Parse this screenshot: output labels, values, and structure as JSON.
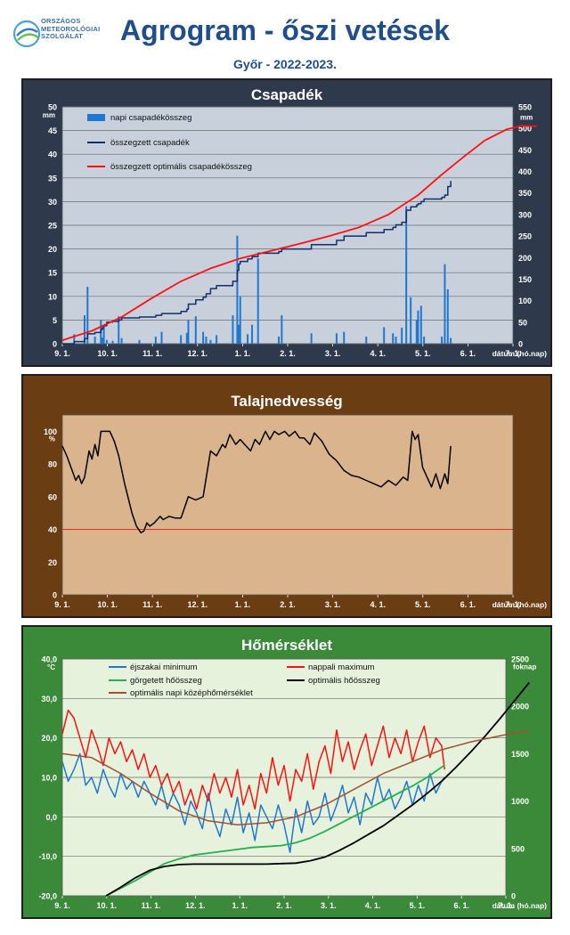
{
  "header": {
    "logo_lines": [
      "ORSZÁGOS",
      "METEOROLÓGIAI",
      "SZOLGÁLAT"
    ],
    "title": "Agrogram - őszi vetések",
    "subtitle": "Győr - 2022-2023."
  },
  "chart_data": [
    {
      "type": "bar+line",
      "title": "Csapadék",
      "panel_color": "#2e3a4c",
      "plot_color": "#c8d0dc",
      "x_ticks": [
        "9. 1.",
        "10. 1.",
        "11. 1.",
        "12. 1.",
        "1. 1.",
        "2. 1.",
        "3. 1.",
        "4. 1.",
        "5. 1.",
        "6. 1.",
        "7. 1."
      ],
      "x_unit_label": "dátum (hó.nap)",
      "y_left": {
        "unit": "mm",
        "min": 0,
        "max": 50,
        "ticks": [
          0,
          5,
          10,
          15,
          20,
          25,
          30,
          35,
          40,
          45,
          50
        ]
      },
      "y_right": {
        "unit": "mm",
        "min": 0,
        "max": 550,
        "ticks": [
          0,
          50,
          100,
          150,
          200,
          250,
          300,
          350,
          400,
          450,
          500,
          550
        ]
      },
      "legend": [
        "napi csapadékösszeg",
        "összegzett csapadék",
        "összegzett optimális  csapadékösszeg"
      ],
      "series": [
        {
          "name": "napi csapadékösszeg",
          "kind": "bar",
          "axis": "left",
          "color": "#1f77d0",
          "x_day": [
            8,
            15,
            17,
            22,
            26,
            27,
            28,
            30,
            34,
            38,
            40,
            52,
            63,
            67,
            80,
            84,
            85,
            90,
            95,
            97,
            100,
            104,
            115,
            118,
            119,
            120,
            125,
            128,
            132,
            146,
            148,
            168,
            185,
            190,
            205,
            217,
            223,
            225,
            229,
            232,
            235,
            239,
            240,
            242,
            244,
            256,
            258,
            260,
            262
          ],
          "values": [
            2,
            6,
            12,
            1.5,
            5,
            1.3,
            3.5,
            0.8,
            0.6,
            5.8,
            1.2,
            0.8,
            1.5,
            2.5,
            1.8,
            2.3,
            5,
            5.8,
            2.5,
            1.5,
            0.8,
            1.8,
            6,
            22.8,
            4,
            10,
            2,
            4,
            18,
            1.5,
            6,
            2.2,
            2.2,
            2.5,
            1.5,
            3.5,
            2.2,
            1.5,
            3.4,
            29,
            9.8,
            5,
            7,
            8,
            1.5,
            1.5,
            16.8,
            11.5,
            1.2
          ]
        },
        {
          "name": "összegzett csapadék",
          "kind": "step",
          "axis": "right",
          "color": "#102f6b",
          "x_day": [
            0,
            8,
            15,
            17,
            22,
            26,
            27,
            28,
            30,
            34,
            38,
            40,
            52,
            63,
            67,
            80,
            84,
            85,
            90,
            95,
            97,
            100,
            104,
            115,
            118,
            119,
            120,
            125,
            128,
            132,
            146,
            148,
            168,
            185,
            190,
            205,
            217,
            223,
            225,
            229,
            232,
            235,
            239,
            240,
            242,
            244,
            256,
            258,
            260,
            262
          ],
          "values": [
            0,
            5,
            12,
            23,
            26,
            33,
            37,
            42,
            50,
            52,
            55,
            60,
            62,
            66,
            70,
            75,
            80,
            92,
            102,
            108,
            116,
            128,
            135,
            145,
            170,
            185,
            191,
            197,
            202,
            210,
            214,
            220,
            230,
            240,
            250,
            258,
            265,
            270,
            276,
            282,
            310,
            318,
            322,
            325,
            330,
            336,
            340,
            345,
            365,
            378
          ]
        },
        {
          "name": "összegzett optimális  csapadékösszeg",
          "kind": "line",
          "axis": "right",
          "color": "#ff1010",
          "x_day": [
            0,
            20,
            40,
            60,
            80,
            100,
            120,
            140,
            160,
            180,
            200,
            220,
            240,
            255,
            270,
            285,
            300,
            310,
            320
          ],
          "values": [
            8,
            30,
            62,
            105,
            145,
            175,
            198,
            215,
            232,
            250,
            270,
            300,
            345,
            390,
            432,
            472,
            498,
            506,
            505
          ]
        }
      ]
    },
    {
      "type": "line",
      "title": "Talajnedvesség",
      "panel_color": "#6b3d12",
      "plot_color": "#d9b48c",
      "x_ticks": [
        "9. 1.",
        "10. 1.",
        "11. 1.",
        "12. 1.",
        "1. 1.",
        "2. 1.",
        "3. 1.",
        "4. 1.",
        "5. 1.",
        "6. 1.",
        "7. 1."
      ],
      "x_unit_label": "dátum (hó.nap)",
      "y_left": {
        "unit": "%",
        "min": 0,
        "max": 110,
        "ticks": [
          0,
          20,
          40,
          60,
          80,
          100
        ]
      },
      "reference_line": {
        "value": 40,
        "color": "#ff2020"
      },
      "series": [
        {
          "name": "talajnedvesség",
          "color": "#000000",
          "x_day": [
            0,
            3,
            7,
            9,
            11,
            13,
            15,
            18,
            20,
            22,
            24,
            26,
            28,
            30,
            32,
            35,
            38,
            42,
            47,
            50,
            53,
            55,
            57,
            59,
            62,
            64,
            66,
            68,
            72,
            76,
            80,
            85,
            90,
            95,
            100,
            104,
            108,
            110,
            113,
            117,
            120,
            123,
            127,
            130,
            133,
            137,
            140,
            143,
            146,
            150,
            153,
            157,
            160,
            163,
            167,
            170,
            175,
            180,
            185,
            190,
            195,
            200,
            205,
            210,
            215,
            220,
            225,
            230,
            233,
            236,
            238,
            240,
            243,
            246,
            249,
            252,
            255,
            258,
            260,
            262
          ],
          "values": [
            91,
            85,
            75,
            70,
            73,
            68,
            72,
            88,
            83,
            92,
            85,
            100,
            100,
            100,
            100,
            94,
            85,
            68,
            50,
            42,
            38,
            39,
            44,
            42,
            44,
            46,
            48,
            46,
            48,
            47,
            47,
            60,
            58,
            60,
            88,
            85,
            92,
            90,
            98,
            92,
            95,
            92,
            88,
            95,
            92,
            100,
            95,
            100,
            98,
            100,
            97,
            100,
            96,
            96,
            92,
            99,
            94,
            86,
            82,
            76,
            73,
            72,
            70,
            68,
            66,
            70,
            67,
            72,
            70,
            100,
            95,
            98,
            78,
            72,
            66,
            74,
            65,
            74,
            68,
            91
          ]
        }
      ]
    },
    {
      "type": "line",
      "title": "Hőmérséklet",
      "panel_color": "#3a8a3a",
      "plot_color": "#e6f2dc",
      "x_ticks": [
        "9. 1.",
        "10. 1.",
        "11. 1.",
        "12. 1.",
        "1. 1.",
        "2. 1.",
        "3. 1.",
        "4. 1.",
        "5. 1.",
        "6. 1.",
        "7. 1."
      ],
      "x_unit_label": "dátum (hó.nap)",
      "y_left": {
        "unit": "°C",
        "min": -20,
        "max": 40,
        "ticks": [
          "-20,0",
          "-10,0",
          "0,0",
          "10,0",
          "20,0",
          "30,0",
          "40,0"
        ]
      },
      "y_right": {
        "unit": "foknap",
        "min": 0,
        "max": 2500,
        "ticks": [
          0,
          500,
          1000,
          1500,
          2000,
          2500
        ]
      },
      "legend": [
        "éjszakai minimum",
        "nappali maximum",
        "görgetett hőösszeg",
        "optimális hőösszeg",
        "optimális napi középhőmérséklet"
      ],
      "series": [
        {
          "name": "éjszakai minimum",
          "axis": "left",
          "color": "#1f77d0",
          "x_day": [
            0,
            4,
            8,
            12,
            16,
            20,
            24,
            28,
            32,
            36,
            40,
            44,
            48,
            52,
            56,
            60,
            64,
            68,
            72,
            76,
            80,
            84,
            88,
            92,
            96,
            100,
            104,
            108,
            112,
            116,
            120,
            124,
            128,
            132,
            136,
            140,
            144,
            148,
            152,
            156,
            160,
            164,
            168,
            172,
            176,
            180,
            184,
            188,
            192,
            196,
            200,
            204,
            208,
            212,
            216,
            220,
            224,
            228,
            232,
            236,
            240,
            244,
            248,
            252,
            256,
            260,
            262
          ],
          "values": [
            14,
            9,
            12,
            16,
            8,
            10,
            6,
            12,
            8,
            5,
            11,
            7,
            9,
            5,
            9,
            6,
            3,
            8,
            2,
            6,
            3,
            -2,
            4,
            1,
            -3,
            6,
            -1,
            -5,
            2,
            -2,
            5,
            -4,
            1,
            -6,
            3,
            0,
            -3,
            3,
            -2,
            -9,
            2,
            -4,
            4,
            -2,
            0,
            6,
            -1,
            3,
            8,
            1,
            5,
            -2,
            6,
            3,
            10,
            4,
            7,
            2,
            5,
            9,
            3,
            8,
            4,
            11,
            6,
            9,
            10
          ]
        },
        {
          "name": "nappali maximum",
          "axis": "left",
          "color": "#ff1010",
          "x_day": [
            0,
            4,
            8,
            12,
            16,
            20,
            24,
            28,
            32,
            36,
            40,
            44,
            48,
            52,
            56,
            60,
            64,
            68,
            72,
            76,
            80,
            84,
            88,
            92,
            96,
            100,
            104,
            108,
            112,
            116,
            120,
            124,
            128,
            132,
            136,
            140,
            144,
            148,
            152,
            156,
            160,
            164,
            168,
            172,
            176,
            180,
            184,
            188,
            192,
            196,
            200,
            204,
            208,
            212,
            216,
            220,
            224,
            228,
            232,
            236,
            240,
            244,
            248,
            252,
            256,
            260,
            262
          ],
          "values": [
            21,
            27,
            25,
            20,
            15,
            22,
            18,
            13,
            20,
            16,
            19,
            14,
            17,
            12,
            16,
            10,
            13,
            8,
            11,
            6,
            9,
            3,
            7,
            2,
            8,
            4,
            11,
            6,
            10,
            5,
            12,
            3,
            8,
            2,
            11,
            6,
            15,
            8,
            13,
            4,
            12,
            9,
            16,
            7,
            14,
            18,
            11,
            22,
            14,
            19,
            12,
            17,
            21,
            13,
            18,
            23,
            15,
            20,
            16,
            22,
            14,
            19,
            23,
            15,
            20,
            18,
            12
          ]
        },
        {
          "name": "görgetett hőösszeg",
          "axis": "right",
          "color": "#22b14c",
          "x_day": [
            30,
            40,
            50,
            60,
            70,
            80,
            90,
            100,
            110,
            120,
            130,
            140,
            150,
            160,
            170,
            180,
            190,
            200,
            210,
            220,
            230,
            240,
            250,
            262
          ],
          "values": [
            0,
            80,
            160,
            250,
            340,
            390,
            430,
            450,
            470,
            490,
            510,
            520,
            530,
            560,
            610,
            680,
            760,
            840,
            920,
            1000,
            1080,
            1160,
            1250,
            1380
          ]
        },
        {
          "name": "optimális hőösszeg",
          "axis": "right",
          "color": "#000000",
          "x_day": [
            30,
            40,
            50,
            60,
            70,
            80,
            90,
            100,
            110,
            120,
            130,
            140,
            150,
            160,
            170,
            180,
            190,
            200,
            210,
            220,
            230,
            240,
            250,
            260,
            270,
            280,
            290,
            300,
            310,
            320
          ],
          "values": [
            0,
            90,
            190,
            270,
            310,
            330,
            335,
            335,
            335,
            335,
            335,
            335,
            340,
            345,
            370,
            410,
            480,
            560,
            650,
            740,
            850,
            960,
            1080,
            1210,
            1360,
            1520,
            1690,
            1870,
            2060,
            2250
          ]
        },
        {
          "name": "optimális napi középhőmérséklet",
          "axis": "left",
          "color": "#a0522d",
          "x_day": [
            0,
            20,
            40,
            60,
            80,
            100,
            120,
            140,
            160,
            180,
            200,
            220,
            240,
            260,
            280,
            300,
            320
          ],
          "values": [
            16,
            15,
            11,
            6,
            1.5,
            -1,
            -2,
            -1.5,
            0,
            3,
            7,
            11,
            14,
            17,
            19,
            20.5,
            22
          ]
        }
      ]
    }
  ]
}
